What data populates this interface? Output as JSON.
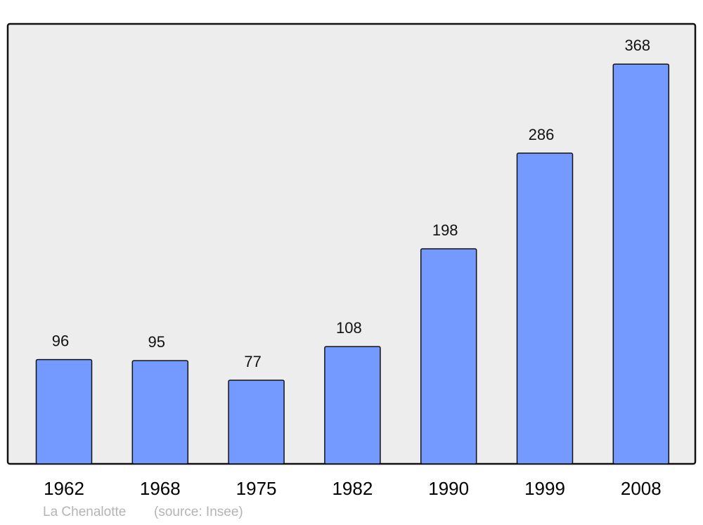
{
  "chart_data": {
    "type": "bar",
    "categories": [
      "1962",
      "1968",
      "1975",
      "1982",
      "1990",
      "1999",
      "2008"
    ],
    "values": [
      96,
      95,
      77,
      108,
      198,
      286,
      368
    ],
    "ylim": [
      0,
      405
    ],
    "grid": false,
    "bar_color": "#7499FF",
    "plot_background": "#EDEDED",
    "title": "",
    "xlabel": "",
    "ylabel": ""
  },
  "footer": {
    "place": "La Chenalotte",
    "source": "(source: Insee)"
  }
}
